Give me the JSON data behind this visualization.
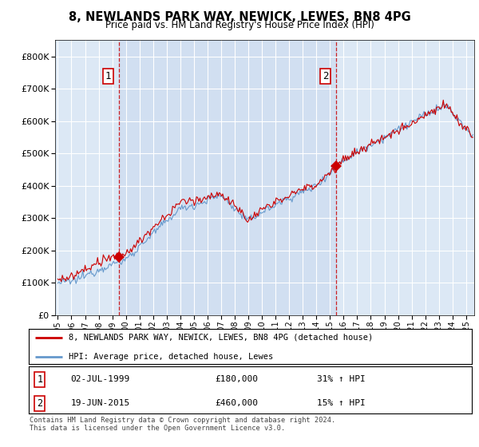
{
  "title": "8, NEWLANDS PARK WAY, NEWICK, LEWES, BN8 4PG",
  "subtitle": "Price paid vs. HM Land Registry's House Price Index (HPI)",
  "legend_entry1": "8, NEWLANDS PARK WAY, NEWICK, LEWES, BN8 4PG (detached house)",
  "legend_entry2": "HPI: Average price, detached house, Lewes",
  "sale1_date": "02-JUL-1999",
  "sale1_price": 180000,
  "sale1_label": "31% ↑ HPI",
  "sale2_date": "19-JUN-2015",
  "sale2_price": 460000,
  "sale2_label": "15% ↑ HPI",
  "footer": "Contains HM Land Registry data © Crown copyright and database right 2024.\nThis data is licensed under the Open Government Licence v3.0.",
  "ylim": [
    0,
    850000
  ],
  "bg_color": "#dce8f5",
  "red_color": "#cc0000",
  "blue_color": "#6699cc",
  "sale1_year": 1999.5,
  "sale2_year": 2015.46
}
